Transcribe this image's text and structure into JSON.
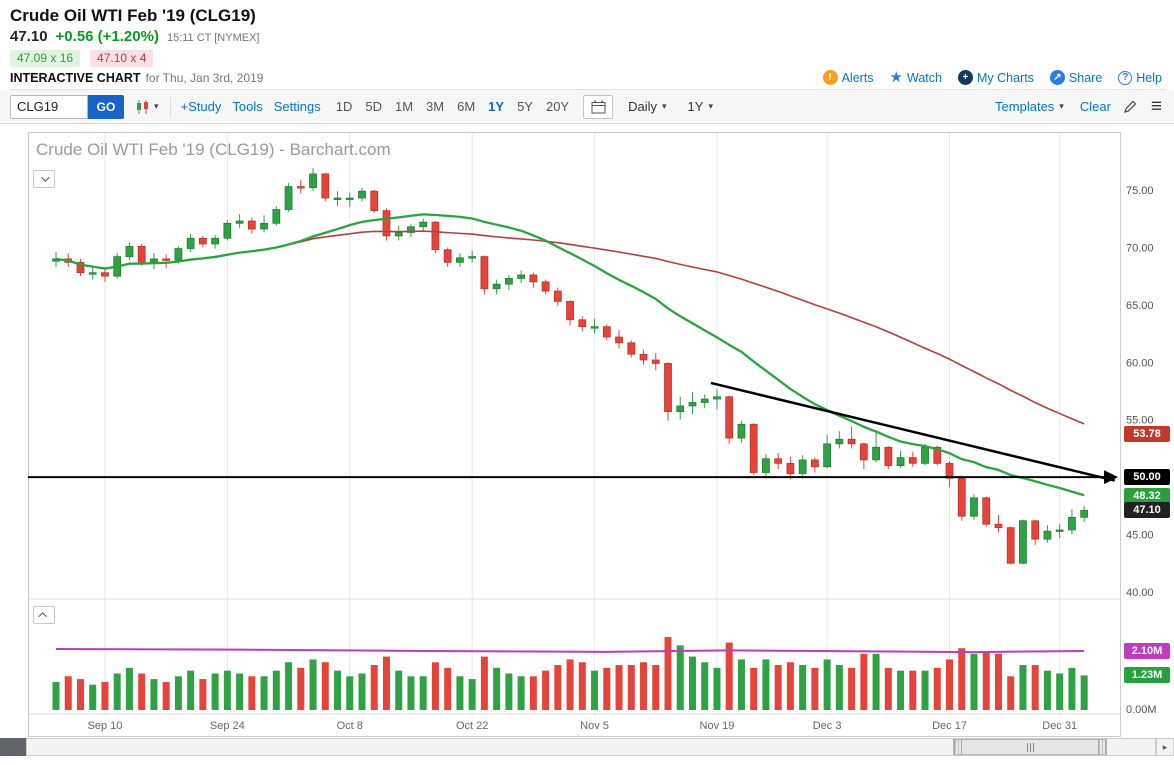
{
  "header": {
    "title": "Crude Oil WTI Feb '19 (CLG19)",
    "last": "47.10",
    "change": "+0.56 (+1.20%)",
    "time": "15:11 CT [NYMEX]",
    "bid": "47.09 x 16",
    "ask": "47.10 x 4",
    "page_label": "INTERACTIVE CHART",
    "page_date": "for Thu, Jan 3rd, 2019",
    "links": [
      {
        "label": "Alerts"
      },
      {
        "label": "Watch"
      },
      {
        "label": "My Charts"
      },
      {
        "label": "Share"
      },
      {
        "label": "Help"
      }
    ]
  },
  "toolbar": {
    "symbol_value": "CLG19",
    "go_label": "GO",
    "study_label": "+Study",
    "tools_label": "Tools",
    "settings_label": "Settings",
    "ranges": [
      "1D",
      "5D",
      "1M",
      "3M",
      "6M",
      "1Y",
      "5Y",
      "20Y"
    ],
    "active_range": "1Y",
    "frequency_label": "Daily",
    "period_label": "1Y",
    "templates_label": "Templates",
    "clear_label": "Clear"
  },
  "chart": {
    "watermark": "Crude Oil WTI Feb '19 (CLG19) - Barchart.com",
    "y_axis_labels": [
      "75.00",
      "70.00",
      "65.00",
      "60.00",
      "55.00",
      "50.00",
      "45.00",
      "40.00"
    ],
    "x_axis_labels": [
      {
        "label": "Sep 10",
        "index": 4
      },
      {
        "label": "Sep 24",
        "index": 14
      },
      {
        "label": "Oct 8",
        "index": 24
      },
      {
        "label": "Oct 22",
        "index": 34
      },
      {
        "label": "Nov 5",
        "index": 44
      },
      {
        "label": "Nov 19",
        "index": 54
      },
      {
        "label": "Dec 3",
        "index": 63
      },
      {
        "label": "Dec 17",
        "index": 73
      },
      {
        "label": "Dec 31",
        "index": 82
      }
    ],
    "price_badges": [
      {
        "text": "53.78",
        "color": "#c0392b",
        "price": 53.78
      },
      {
        "text": "50.00",
        "color": "#000000",
        "price": 50.0
      },
      {
        "text": "48.32",
        "color": "#28a13c",
        "price": 48.32
      },
      {
        "text": "47.10",
        "color": "#222222",
        "price": 47.1
      }
    ],
    "volume_badges": [
      {
        "text": "2.10M",
        "color": "#bf3bbf",
        "value": 2.1
      },
      {
        "text": "1.23M",
        "color": "#28a13c",
        "value": 1.23
      }
    ],
    "volume_zero_label": "0.00M",
    "colors": {
      "up": "#2fa243",
      "up_border": "#1e7c31",
      "down": "#e5443a",
      "down_border": "#b93227",
      "ma_fast": "#28a53c",
      "ma_slow": "#b0413e",
      "open_interest": "#bf3bbf",
      "annotation": "#000000",
      "grid": "#e8e8e8",
      "frame": "#cccccc",
      "axis_text": "#666666"
    },
    "annotations": {
      "hline_price": 50.0,
      "trendline": {
        "from": {
          "index": 53.5,
          "price": 58.2
        },
        "to": {
          "index": 86.5,
          "price": 49.7
        }
      }
    }
  },
  "chart_data": {
    "type": "candlestick+volume",
    "title": "Crude Oil WTI Feb '19 (CLG19) - Barchart.com",
    "ylim_price": [
      40,
      80
    ],
    "ylim_volume_millions": [
      0,
      3
    ],
    "overlays": [
      "SMA20 green",
      "SMA50 red",
      "Open interest magenta ~2.10M"
    ],
    "dates": [
      "Sep 4",
      "Sep 5",
      "Sep 6",
      "Sep 7",
      "Sep 10",
      "Sep 11",
      "Sep 12",
      "Sep 13",
      "Sep 14",
      "Sep 17",
      "Sep 18",
      "Sep 19",
      "Sep 20",
      "Sep 21",
      "Sep 24",
      "Sep 25",
      "Sep 26",
      "Sep 27",
      "Sep 28",
      "Oct 1",
      "Oct 2",
      "Oct 3",
      "Oct 4",
      "Oct 5",
      "Oct 8",
      "Oct 9",
      "Oct 10",
      "Oct 11",
      "Oct 12",
      "Oct 15",
      "Oct 16",
      "Oct 17",
      "Oct 18",
      "Oct 19",
      "Oct 22",
      "Oct 23",
      "Oct 24",
      "Oct 25",
      "Oct 26",
      "Oct 29",
      "Oct 30",
      "Oct 31",
      "Nov 1",
      "Nov 2",
      "Nov 5",
      "Nov 6",
      "Nov 7",
      "Nov 8",
      "Nov 9",
      "Nov 12",
      "Nov 13",
      "Nov 14",
      "Nov 15",
      "Nov 16",
      "Nov 19",
      "Nov 20",
      "Nov 21",
      "Nov 23",
      "Nov 26",
      "Nov 27",
      "Nov 28",
      "Nov 29",
      "Nov 30",
      "Dec 3",
      "Dec 4",
      "Dec 5",
      "Dec 6",
      "Dec 7",
      "Dec 10",
      "Dec 11",
      "Dec 12",
      "Dec 13",
      "Dec 14",
      "Dec 17",
      "Dec 18",
      "Dec 19",
      "Dec 20",
      "Dec 21",
      "Dec 24",
      "Dec 26",
      "Dec 27",
      "Dec 28",
      "Dec 31",
      "Jan 2",
      "Jan 3"
    ],
    "open": [
      68.8,
      69.0,
      68.7,
      67.8,
      67.8,
      67.5,
      69.2,
      70.1,
      68.6,
      69.0,
      68.9,
      69.9,
      70.8,
      70.3,
      70.8,
      72.1,
      72.3,
      71.6,
      72.1,
      73.3,
      75.3,
      75.2,
      76.4,
      74.3,
      74.3,
      74.3,
      74.9,
      73.2,
      71.0,
      71.3,
      71.8,
      72.2,
      69.8,
      68.7,
      69.1,
      69.2,
      66.4,
      66.8,
      67.3,
      67.6,
      67.0,
      66.2,
      65.3,
      63.7,
      63.1,
      63.1,
      62.2,
      61.7,
      60.7,
      60.2,
      59.9,
      55.7,
      56.2,
      56.5,
      56.8,
      57.0,
      53.4,
      54.6,
      50.4,
      51.6,
      51.2,
      50.3,
      51.5,
      50.9,
      52.9,
      53.3,
      52.9,
      51.5,
      52.6,
      51.0,
      51.7,
      51.2,
      52.6,
      51.2,
      49.9,
      46.6,
      48.2,
      45.9,
      45.6,
      42.5,
      46.2,
      44.6,
      45.3,
      45.4,
      46.5
    ],
    "high": [
      69.6,
      69.5,
      69.0,
      68.3,
      68.1,
      69.5,
      70.4,
      70.3,
      69.5,
      69.4,
      70.1,
      71.2,
      71.0,
      71.1,
      72.4,
      72.9,
      72.6,
      72.8,
      73.6,
      75.6,
      75.9,
      76.9,
      76.5,
      74.9,
      74.8,
      75.2,
      75.0,
      73.4,
      71.9,
      72.0,
      72.5,
      72.3,
      70.0,
      69.5,
      69.7,
      69.3,
      67.2,
      67.6,
      68.0,
      67.8,
      67.2,
      66.5,
      65.4,
      64.0,
      63.8,
      63.3,
      62.8,
      61.9,
      61.1,
      60.8,
      60.0,
      57.0,
      57.4,
      57.2,
      57.7,
      57.1,
      54.9,
      54.7,
      52.0,
      52.1,
      51.8,
      51.9,
      51.7,
      53.7,
      54.0,
      54.4,
      53.0,
      54.1,
      52.7,
      52.3,
      52.2,
      52.9,
      52.7,
      51.4,
      50.1,
      48.5,
      48.3,
      46.7,
      45.7,
      46.3,
      46.3,
      45.8,
      45.9,
      47.2,
      47.5
    ],
    "low": [
      68.3,
      68.3,
      67.5,
      67.2,
      67.0,
      67.3,
      68.9,
      68.4,
      68.1,
      68.2,
      68.6,
      69.6,
      70.0,
      69.9,
      70.6,
      71.7,
      71.2,
      71.3,
      71.9,
      73.1,
      74.7,
      74.9,
      74.0,
      73.6,
      73.5,
      74.0,
      73.0,
      70.6,
      70.6,
      70.9,
      71.4,
      69.5,
      68.3,
      68.3,
      68.7,
      65.9,
      65.9,
      66.3,
      66.9,
      66.5,
      65.9,
      64.9,
      63.2,
      62.7,
      62.5,
      61.9,
      61.2,
      60.4,
      59.8,
      59.3,
      54.9,
      55.0,
      55.5,
      56.0,
      55.9,
      52.9,
      53.0,
      50.2,
      49.9,
      50.7,
      49.8,
      50.0,
      50.4,
      50.8,
      52.5,
      52.5,
      50.7,
      51.3,
      50.7,
      50.8,
      50.9,
      51.0,
      51.0,
      49.1,
      46.2,
      46.3,
      45.7,
      45.2,
      42.4,
      42.4,
      44.1,
      44.3,
      44.7,
      45.0,
      46.1
    ],
    "close": [
      69.0,
      68.7,
      67.8,
      67.8,
      67.5,
      69.2,
      70.1,
      68.6,
      69.0,
      68.9,
      69.9,
      70.8,
      70.3,
      70.8,
      72.1,
      72.3,
      71.6,
      72.1,
      73.3,
      75.3,
      75.2,
      76.4,
      74.3,
      74.3,
      74.3,
      74.9,
      73.2,
      71.0,
      71.3,
      71.8,
      72.2,
      69.8,
      68.7,
      69.1,
      69.2,
      66.4,
      66.8,
      67.3,
      67.6,
      67.0,
      66.2,
      65.3,
      63.7,
      63.1,
      63.1,
      62.2,
      61.7,
      60.7,
      60.2,
      59.9,
      55.7,
      56.2,
      56.5,
      56.8,
      57.0,
      53.4,
      54.6,
      50.4,
      51.6,
      51.2,
      50.3,
      51.5,
      50.9,
      52.9,
      53.3,
      52.9,
      51.5,
      52.6,
      51.0,
      51.7,
      51.2,
      52.6,
      51.2,
      49.9,
      46.6,
      48.2,
      45.9,
      45.6,
      42.5,
      46.2,
      44.6,
      45.3,
      45.4,
      46.5,
      47.1
    ],
    "volume_millions": [
      1.0,
      1.2,
      1.1,
      0.9,
      1.0,
      1.3,
      1.5,
      1.3,
      1.1,
      1.0,
      1.2,
      1.4,
      1.1,
      1.3,
      1.4,
      1.3,
      1.2,
      1.2,
      1.4,
      1.7,
      1.5,
      1.8,
      1.7,
      1.4,
      1.2,
      1.3,
      1.6,
      1.9,
      1.4,
      1.2,
      1.2,
      1.7,
      1.5,
      1.2,
      1.1,
      1.9,
      1.5,
      1.3,
      1.2,
      1.2,
      1.4,
      1.6,
      1.8,
      1.7,
      1.4,
      1.5,
      1.6,
      1.6,
      1.7,
      1.6,
      2.6,
      2.3,
      1.9,
      1.7,
      1.5,
      2.4,
      1.8,
      1.5,
      1.8,
      1.6,
      1.7,
      1.6,
      1.5,
      1.8,
      1.6,
      1.5,
      2.0,
      2.0,
      1.5,
      1.4,
      1.4,
      1.4,
      1.5,
      1.8,
      2.2,
      2.0,
      2.1,
      2.0,
      1.2,
      1.6,
      1.6,
      1.4,
      1.3,
      1.5,
      1.23
    ],
    "open_interest_points": [
      {
        "i": 0,
        "v": 2.17
      },
      {
        "i": 15,
        "v": 2.15
      },
      {
        "i": 30,
        "v": 2.1
      },
      {
        "i": 45,
        "v": 2.07
      },
      {
        "i": 55,
        "v": 2.12
      },
      {
        "i": 65,
        "v": 2.09
      },
      {
        "i": 75,
        "v": 2.06
      },
      {
        "i": 84,
        "v": 2.1
      }
    ]
  }
}
